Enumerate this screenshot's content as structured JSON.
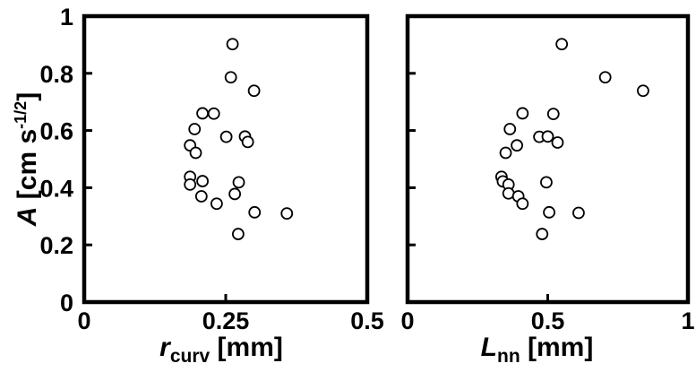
{
  "chart_data": [
    {
      "type": "scatter",
      "xlabel": {
        "main": "r",
        "sub": "curv",
        "unit": " [mm]"
      },
      "ylabel": {
        "main": "A",
        "unit_prefix": " [cm s",
        "sup": "-1/2",
        "unit_suffix": "]"
      },
      "xlim": [
        0,
        0.5
      ],
      "ylim": [
        0,
        1
      ],
      "xticks": [
        "0",
        "0.25",
        "0.5"
      ],
      "xtick_values": [
        0,
        0.25,
        0.5
      ],
      "yticks": [
        "0",
        "0.2",
        "0.4",
        "0.6",
        "0.8",
        "1"
      ],
      "ytick_values": [
        0,
        0.2,
        0.4,
        0.6,
        0.8,
        1
      ],
      "grid": false,
      "marker": "open-circle",
      "points": [
        {
          "x": 0.262,
          "y": 0.902
        },
        {
          "x": 0.259,
          "y": 0.786
        },
        {
          "x": 0.3,
          "y": 0.739
        },
        {
          "x": 0.209,
          "y": 0.66
        },
        {
          "x": 0.229,
          "y": 0.659
        },
        {
          "x": 0.195,
          "y": 0.605
        },
        {
          "x": 0.251,
          "y": 0.578
        },
        {
          "x": 0.284,
          "y": 0.579
        },
        {
          "x": 0.289,
          "y": 0.56
        },
        {
          "x": 0.187,
          "y": 0.548
        },
        {
          "x": 0.197,
          "y": 0.522
        },
        {
          "x": 0.187,
          "y": 0.438
        },
        {
          "x": 0.209,
          "y": 0.423
        },
        {
          "x": 0.273,
          "y": 0.419
        },
        {
          "x": 0.187,
          "y": 0.411
        },
        {
          "x": 0.207,
          "y": 0.37
        },
        {
          "x": 0.266,
          "y": 0.378
        },
        {
          "x": 0.234,
          "y": 0.344
        },
        {
          "x": 0.301,
          "y": 0.314
        },
        {
          "x": 0.358,
          "y": 0.31
        },
        {
          "x": 0.272,
          "y": 0.238
        }
      ]
    },
    {
      "type": "scatter",
      "xlabel": {
        "main": "L",
        "sub": "nn",
        "unit": " [mm]"
      },
      "xlim": [
        0,
        1
      ],
      "ylim": [
        0,
        1
      ],
      "xticks": [
        "0",
        "0.5",
        "1"
      ],
      "xtick_values": [
        0,
        0.5,
        1
      ],
      "ytick_values": [
        0,
        0.2,
        0.4,
        0.6,
        0.8,
        1
      ],
      "grid": false,
      "marker": "open-circle",
      "points": [
        {
          "x": 0.55,
          "y": 0.902
        },
        {
          "x": 0.705,
          "y": 0.786
        },
        {
          "x": 0.84,
          "y": 0.739
        },
        {
          "x": 0.41,
          "y": 0.66
        },
        {
          "x": 0.52,
          "y": 0.658
        },
        {
          "x": 0.365,
          "y": 0.605
        },
        {
          "x": 0.47,
          "y": 0.578
        },
        {
          "x": 0.5,
          "y": 0.579
        },
        {
          "x": 0.535,
          "y": 0.558
        },
        {
          "x": 0.39,
          "y": 0.548
        },
        {
          "x": 0.35,
          "y": 0.522
        },
        {
          "x": 0.335,
          "y": 0.438
        },
        {
          "x": 0.34,
          "y": 0.422
        },
        {
          "x": 0.495,
          "y": 0.419
        },
        {
          "x": 0.36,
          "y": 0.411
        },
        {
          "x": 0.36,
          "y": 0.38
        },
        {
          "x": 0.395,
          "y": 0.37
        },
        {
          "x": 0.41,
          "y": 0.344
        },
        {
          "x": 0.505,
          "y": 0.314
        },
        {
          "x": 0.61,
          "y": 0.312
        },
        {
          "x": 0.48,
          "y": 0.238
        }
      ]
    }
  ]
}
